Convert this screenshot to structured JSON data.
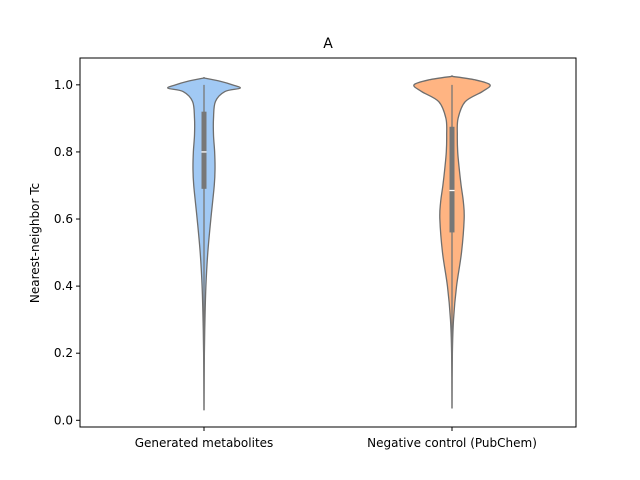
{
  "chart_data": {
    "type": "violin",
    "title": "A",
    "xlabel": "",
    "ylabel": "Nearest-neighbor Tc",
    "ylim": [
      -0.02,
      1.08
    ],
    "yticks": [
      0.0,
      0.2,
      0.4,
      0.6,
      0.8,
      1.0
    ],
    "ytick_labels": [
      "0.0",
      "0.2",
      "0.4",
      "0.6",
      "0.8",
      "1.0"
    ],
    "grid": false,
    "categories": [
      "Generated metabolites",
      "Negative control (PubChem)"
    ],
    "violins": [
      {
        "category": "Generated metabolites",
        "color": "#a1c9f4",
        "edge_color": "#6e6e6e",
        "min": 0.03,
        "q1": 0.69,
        "median": 0.8,
        "q3": 0.92,
        "max": 1.0,
        "density_profile": [
          [
            0.03,
            0.0
          ],
          [
            0.2,
            0.01
          ],
          [
            0.3,
            0.025
          ],
          [
            0.4,
            0.05
          ],
          [
            0.5,
            0.1
          ],
          [
            0.6,
            0.18
          ],
          [
            0.7,
            0.27
          ],
          [
            0.75,
            0.29
          ],
          [
            0.8,
            0.28
          ],
          [
            0.85,
            0.25
          ],
          [
            0.9,
            0.25
          ],
          [
            0.95,
            0.3
          ],
          [
            0.98,
            0.55
          ],
          [
            0.99,
            0.95
          ],
          [
            1.0,
            0.75
          ],
          [
            1.01,
            0.45
          ],
          [
            1.02,
            0.02
          ]
        ]
      },
      {
        "category": "Negative control (PubChem)",
        "color": "#ffb482",
        "edge_color": "#6e6e6e",
        "min": 0.035,
        "q1": 0.56,
        "median": 0.685,
        "q3": 0.875,
        "max": 1.0,
        "density_profile": [
          [
            0.035,
            0.0
          ],
          [
            0.2,
            0.01
          ],
          [
            0.3,
            0.04
          ],
          [
            0.4,
            0.12
          ],
          [
            0.5,
            0.25
          ],
          [
            0.6,
            0.32
          ],
          [
            0.65,
            0.3
          ],
          [
            0.7,
            0.24
          ],
          [
            0.75,
            0.19
          ],
          [
            0.8,
            0.15
          ],
          [
            0.85,
            0.14
          ],
          [
            0.9,
            0.16
          ],
          [
            0.95,
            0.35
          ],
          [
            0.98,
            0.8
          ],
          [
            1.0,
            1.0
          ],
          [
            1.015,
            0.6
          ],
          [
            1.025,
            0.02
          ]
        ]
      }
    ]
  }
}
